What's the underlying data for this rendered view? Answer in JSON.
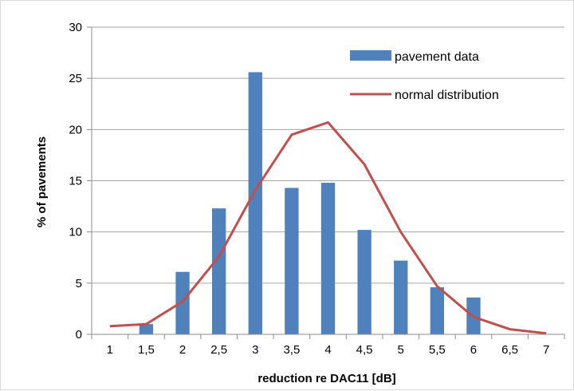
{
  "chart_data": {
    "type": "bar",
    "xlabel": "reduction re DAC11 [dB]",
    "ylabel": "% of pavements",
    "ylim": [
      0,
      30
    ],
    "yticks": [
      0,
      5,
      10,
      15,
      20,
      25,
      30
    ],
    "categories": [
      "1",
      "1,5",
      "2",
      "2,5",
      "3",
      "3,5",
      "4",
      "4,5",
      "5",
      "5,5",
      "6",
      "6,5",
      "7"
    ],
    "grid": true,
    "legend_position": "top-right",
    "series": [
      {
        "name": "pavement data",
        "type": "bar",
        "color": "#4f81bd",
        "values": [
          0,
          1.0,
          6.1,
          12.3,
          25.6,
          14.3,
          14.8,
          10.2,
          7.2,
          4.6,
          3.6,
          0,
          0
        ]
      },
      {
        "name": "normal distribution",
        "type": "line",
        "color": "#c0504d",
        "values": [
          0.8,
          1.0,
          3.2,
          7.6,
          14.1,
          19.5,
          20.7,
          16.6,
          10.0,
          4.7,
          1.7,
          0.5,
          0.1
        ]
      }
    ]
  }
}
